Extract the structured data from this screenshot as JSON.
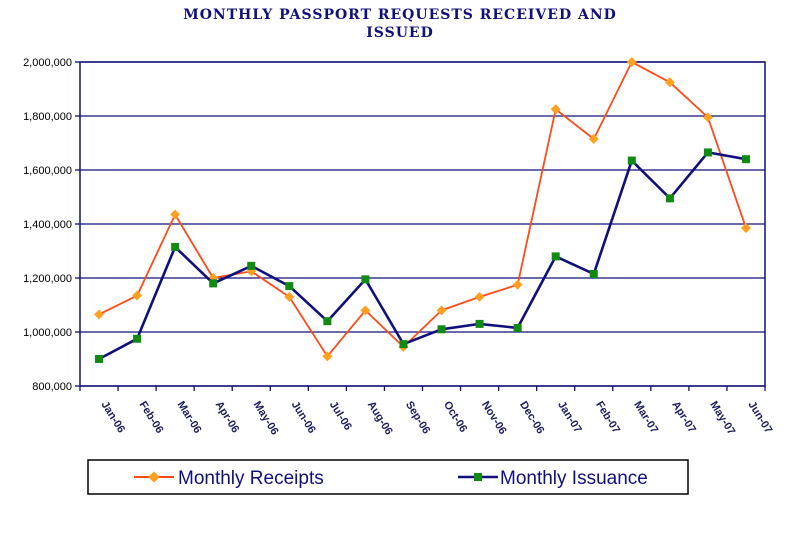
{
  "chart_data": {
    "type": "line",
    "title": "MONTHLY PASSPORT REQUESTS RECEIVED AND ISSUED",
    "title_lines": [
      "MONTHLY PASSPORT REQUESTS RECEIVED AND",
      "ISSUED"
    ],
    "xlabel": "",
    "ylabel": "",
    "ylim": [
      800000,
      2000000
    ],
    "yticks": [
      800000,
      1000000,
      1200000,
      1400000,
      1600000,
      1800000,
      2000000
    ],
    "ytick_labels": [
      "800,000",
      "1,000,000",
      "1,200,000",
      "1,400,000",
      "1,600,000",
      "1,800,000",
      "2,000,000"
    ],
    "grid": true,
    "legend_position": "bottom",
    "categories": [
      "Jan-06",
      "Feb-06",
      "Mar-06",
      "Apr-06",
      "May-06",
      "Jun-06",
      "Jul-06",
      "Aug-06",
      "Sep-06",
      "Oct-06",
      "Nov-06",
      "Dec-06",
      "Jan-07",
      "Feb-07",
      "Mar-07",
      "Apr-07",
      "May-07",
      "Jun-07"
    ],
    "series": [
      {
        "name": "Monthly Receipts",
        "color": "#ff4a1a",
        "marker_color": "#ffa020",
        "marker": "diamond",
        "values": [
          1065000,
          1135000,
          1435000,
          1200000,
          1225000,
          1130000,
          910000,
          1080000,
          945000,
          1080000,
          1130000,
          1175000,
          1825000,
          1715000,
          2000000,
          1925000,
          1795000,
          1385000
        ]
      },
      {
        "name": "Monthly Issuance",
        "color": "#10107a",
        "marker_color": "#108a10",
        "marker": "square",
        "values": [
          900000,
          975000,
          1315000,
          1180000,
          1245000,
          1170000,
          1040000,
          1195000,
          955000,
          1010000,
          1030000,
          1015000,
          1280000,
          1215000,
          1635000,
          1495000,
          1665000,
          1640000
        ]
      }
    ]
  }
}
